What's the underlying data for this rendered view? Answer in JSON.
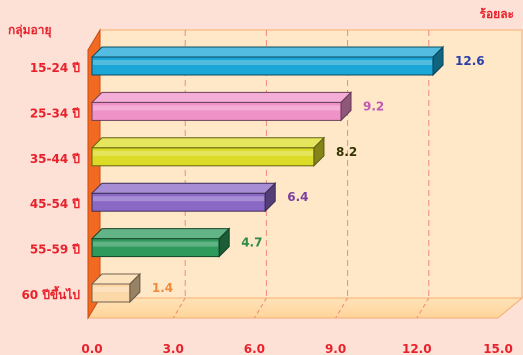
{
  "chart_data": {
    "type": "bar",
    "orientation": "horizontal",
    "ylabel": "กลุ่มอายุ",
    "xlabel": "ร้อยละ",
    "categories": [
      "15-24 ปี",
      "25-34 ปี",
      "35-44 ปี",
      "45-54 ปี",
      "55-59 ปี",
      "60 ปีขึ้นไป"
    ],
    "values": [
      12.6,
      9.2,
      8.2,
      6.4,
      4.7,
      1.4
    ],
    "value_labels": [
      "12.6",
      "9.2",
      "8.2",
      "6.4",
      "4.7",
      "1.4"
    ],
    "xlim": [
      0,
      15
    ],
    "ticks": [
      "0.0",
      "3.0",
      "6.0",
      "9.0",
      "12.0",
      "15.0"
    ],
    "tick_values": [
      0,
      3,
      6,
      9,
      12,
      15
    ],
    "grid": true,
    "colors": {
      "bars": [
        "#1aa6d6",
        "#ef92c8",
        "#dcdc28",
        "#8a68c6",
        "#2e9a5c",
        "#fcd8a8"
      ],
      "value_labels": [
        "#2a3fa8",
        "#c058b4",
        "#333300",
        "#7a3fa0",
        "#2e8a4a",
        "#f08a3c"
      ],
      "background": "#fde0d6",
      "plot_bg": "#ffe8c8",
      "axis_wall": "#f26a22",
      "text": "#e8222c"
    }
  }
}
